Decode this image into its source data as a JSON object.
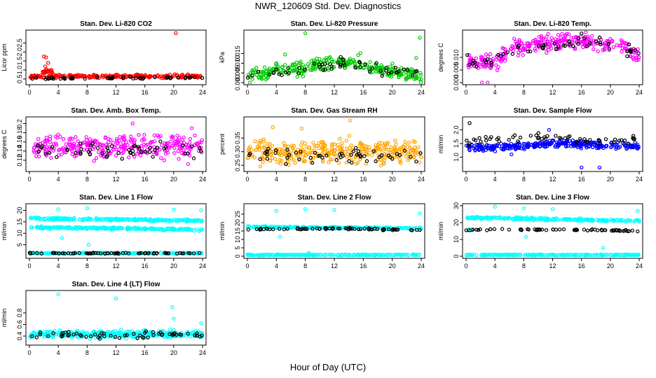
{
  "page": {
    "title": "NWR_120609  Std. Dev. Diagnostics",
    "xlabel": "Hour of Day (UTC)"
  },
  "colors": {
    "red": "#ff0000",
    "green": "#00cc00",
    "magenta": "#ff00ff",
    "orange": "#ffa500",
    "blue": "#0000ff",
    "cyan": "#00ffff",
    "black": "#000000"
  },
  "chart_data": [
    {
      "type": "scatter",
      "title": "Stan. Dev. Li-820 CO2",
      "ylabel": "Licor ppm",
      "xlim": [
        0,
        24
      ],
      "ylim": [
        0.3,
        3.1
      ],
      "xticks": [
        "0",
        "4",
        "8",
        "12",
        "16",
        "20",
        "24"
      ],
      "yticks": [
        {
          "v": 0.5,
          "t": "0.5"
        },
        {
          "v": 1.0,
          "t": "1.0"
        },
        {
          "v": 1.5,
          "t": "1.5"
        },
        {
          "v": 2.0,
          "t": "2.0"
        },
        {
          "v": 2.5,
          "t": "2.5"
        }
      ],
      "series": [
        {
          "color": "red",
          "profile": [
            [
              0,
              0.65
            ],
            [
              24,
              0.65
            ]
          ],
          "noise": 0.06,
          "count": 240
        },
        {
          "color": "red",
          "profile": [
            [
              1.8,
              0.9
            ],
            [
              3.2,
              0.9
            ]
          ],
          "noise": 0.08,
          "count": 25
        },
        {
          "color": "black",
          "profile": [
            [
              0,
              0.55
            ],
            [
              24,
              0.55
            ]
          ],
          "noise": 0.05,
          "count": 50
        }
      ],
      "points": [
        {
          "x": 2.0,
          "y": 1.75,
          "color": "red"
        },
        {
          "x": 2.3,
          "y": 1.7,
          "color": "red"
        },
        {
          "x": 2.6,
          "y": 1.4,
          "color": "red"
        },
        {
          "x": 2.2,
          "y": 1.2,
          "color": "red"
        },
        {
          "x": 20.3,
          "y": 3.05,
          "color": "red"
        }
      ]
    },
    {
      "type": "scatter",
      "title": "Stan. Dev. Li-820 Pressure",
      "ylabel": "kPa",
      "xlim": [
        0,
        24
      ],
      "ylim": [
        0.0,
        0.026
      ],
      "xticks": [
        "0",
        "4",
        "8",
        "12",
        "16",
        "20",
        "24"
      ],
      "yticks": [
        {
          "v": 0.0,
          "t": "0.000"
        },
        {
          "v": 0.005,
          "t": "0.005"
        },
        {
          "v": 0.01,
          "t": "0.010"
        },
        {
          "v": 0.015,
          "t": "0.015"
        }
      ],
      "series": [
        {
          "color": "green",
          "profile": [
            [
              0,
              0.004
            ],
            [
              4,
              0.006
            ],
            [
              10,
              0.009
            ],
            [
              13,
              0.011
            ],
            [
              18,
              0.007
            ],
            [
              24,
              0.003
            ]
          ],
          "noise": 0.0025,
          "count": 300
        },
        {
          "color": "black",
          "profile": [
            [
              0,
              0.004
            ],
            [
              4,
              0.005
            ],
            [
              10,
              0.008
            ],
            [
              13,
              0.01
            ],
            [
              18,
              0.007
            ],
            [
              24,
              0.004
            ]
          ],
          "noise": 0.002,
          "count": 55
        }
      ],
      "points": [
        {
          "x": 8.0,
          "y": 0.0255,
          "color": "green"
        },
        {
          "x": 23.8,
          "y": 0.0232,
          "color": "green"
        },
        {
          "x": 5.2,
          "y": 0.0145,
          "color": "green"
        },
        {
          "x": 15.6,
          "y": 0.0152,
          "color": "green"
        },
        {
          "x": 23.3,
          "y": 0.0127,
          "color": "green"
        }
      ]
    },
    {
      "type": "scatter",
      "title": "Stan. Dev. Li-820 Temp.",
      "ylabel": "degrees C",
      "xlim": [
        0,
        24
      ],
      "ylim": [
        0.0,
        0.02
      ],
      "xticks": [
        "0",
        "4",
        "8",
        "12",
        "16",
        "20",
        "24"
      ],
      "yticks": [
        {
          "v": 0.0,
          "t": "0.000"
        },
        {
          "v": 0.005,
          "t": "0.005"
        },
        {
          "v": 0.01,
          "t": "0.010"
        }
      ],
      "series": [
        {
          "color": "magenta",
          "profile": [
            [
              0,
              0.009
            ],
            [
              2,
              0.008
            ],
            [
              4,
              0.008
            ],
            [
              6,
              0.013
            ],
            [
              10,
              0.016
            ],
            [
              14,
              0.017
            ],
            [
              18,
              0.016
            ],
            [
              22,
              0.014
            ],
            [
              24,
              0.01
            ]
          ],
          "noise": 0.0022,
          "count": 300
        },
        {
          "color": "black",
          "profile": [
            [
              0,
              0.009
            ],
            [
              3,
              0.008
            ],
            [
              6,
              0.012
            ],
            [
              12,
              0.015
            ],
            [
              18,
              0.016
            ],
            [
              24,
              0.011
            ]
          ],
          "noise": 0.0015,
          "count": 55
        }
      ],
      "points": [
        {
          "x": 2.2,
          "y": 0.0,
          "color": "magenta"
        },
        {
          "x": 3.0,
          "y": 0.0,
          "color": "magenta"
        },
        {
          "x": 16.0,
          "y": 0.0195,
          "color": "black"
        }
      ]
    },
    {
      "type": "scatter",
      "title": "Stan. Dev. Amb. Box Temp.",
      "ylabel": "degrees C",
      "xlim": [
        0,
        24
      ],
      "ylim": [
        0.1,
        0.21
      ],
      "xticks": [
        "0",
        "4",
        "8",
        "12",
        "16",
        "20",
        "24"
      ],
      "yticks": [
        {
          "v": 0.12,
          "t": "0.12"
        },
        {
          "v": 0.14,
          "t": "0.14"
        },
        {
          "v": 0.16,
          "t": "0.16"
        },
        {
          "v": 0.18,
          "t": "0.18"
        },
        {
          "v": 0.2,
          "t": "0.2"
        }
      ],
      "series": [
        {
          "color": "magenta",
          "profile": [
            [
              0,
              0.15
            ],
            [
              24,
              0.15
            ]
          ],
          "noise": 0.018,
          "count": 300
        },
        {
          "color": "black",
          "profile": [
            [
              0,
              0.14
            ],
            [
              24,
              0.14
            ]
          ],
          "noise": 0.012,
          "count": 55
        }
      ],
      "points": [
        {
          "x": 14.3,
          "y": 0.2,
          "color": "magenta"
        },
        {
          "x": 22.5,
          "y": 0.19,
          "color": "magenta"
        }
      ]
    },
    {
      "type": "scatter",
      "title": "Stan. Dev. Gas Stream RH",
      "ylabel": "percent",
      "xlim": [
        0,
        24
      ],
      "ylim": [
        0.235,
        0.42
      ],
      "xticks": [
        "0",
        "4",
        "8",
        "12",
        "16",
        "20",
        "24"
      ],
      "yticks": [
        {
          "v": 0.25,
          "t": "0.25"
        },
        {
          "v": 0.3,
          "t": "0.30"
        },
        {
          "v": 0.35,
          "t": "0.35"
        }
      ],
      "series": [
        {
          "color": "orange",
          "profile": [
            [
              0,
              0.3
            ],
            [
              24,
              0.3
            ]
          ],
          "noise": 0.028,
          "count": 340
        },
        {
          "color": "black",
          "profile": [
            [
              0,
              0.29
            ],
            [
              24,
              0.29
            ]
          ],
          "noise": 0.018,
          "count": 55
        }
      ],
      "points": [
        {
          "x": 14.2,
          "y": 0.415,
          "color": "orange"
        },
        {
          "x": 3.5,
          "y": 0.39,
          "color": "orange"
        },
        {
          "x": 7.5,
          "y": 0.385,
          "color": "orange"
        }
      ]
    },
    {
      "type": "scatter",
      "title": "Stan. Dev. Sample Flow",
      "ylabel": "ml/min",
      "xlim": [
        0,
        24
      ],
      "ylim": [
        0.55,
        2.4
      ],
      "xticks": [
        "0",
        "4",
        "8",
        "12",
        "16",
        "20",
        "24"
      ],
      "yticks": [
        {
          "v": 1.0,
          "t": "1.0"
        },
        {
          "v": 1.5,
          "t": "1.5"
        },
        {
          "v": 2.0,
          "t": "2.0"
        }
      ],
      "series": [
        {
          "color": "blue",
          "profile": [
            [
              0,
              1.35
            ],
            [
              8,
              1.4
            ],
            [
              12,
              1.5
            ],
            [
              18,
              1.45
            ],
            [
              24,
              1.4
            ]
          ],
          "noise": 0.09,
          "count": 320
        },
        {
          "color": "black",
          "profile": [
            [
              0,
              1.5
            ],
            [
              4,
              1.7
            ],
            [
              12,
              1.75
            ],
            [
              18,
              1.6
            ],
            [
              24,
              1.65
            ]
          ],
          "noise": 0.09,
          "count": 55
        }
      ],
      "points": [
        {
          "x": 0.5,
          "y": 2.25,
          "color": "black"
        },
        {
          "x": 16.0,
          "y": 0.62,
          "color": "blue"
        },
        {
          "x": 18.5,
          "y": 0.62,
          "color": "blue"
        },
        {
          "x": 11.5,
          "y": 2.0,
          "color": "blue"
        },
        {
          "x": 6.3,
          "y": 1.1,
          "color": "blue"
        }
      ]
    },
    {
      "type": "scatter",
      "title": "Stan. Dev. Line 1 Flow",
      "ylabel": "ml/min",
      "xlim": [
        0,
        24
      ],
      "ylim": [
        0,
        22
      ],
      "xticks": [
        "0",
        "4",
        "8",
        "12",
        "16",
        "20",
        "24"
      ],
      "yticks": [
        {
          "v": 5,
          "t": "5"
        },
        {
          "v": 10,
          "t": "10"
        },
        {
          "v": 15,
          "t": "15"
        },
        {
          "v": 20,
          "t": "20"
        }
      ],
      "series": [
        {
          "color": "cyan",
          "profile": [
            [
              0,
              16.5
            ],
            [
              24,
              15.5
            ]
          ],
          "noise": 0.35,
          "count": 230
        },
        {
          "color": "cyan",
          "profile": [
            [
              0,
              12.5
            ],
            [
              12,
              12.2
            ],
            [
              24,
              11.5
            ]
          ],
          "noise": 0.35,
          "count": 230
        },
        {
          "color": "cyan",
          "profile": [
            [
              0,
              1.3
            ],
            [
              24,
              1.3
            ]
          ],
          "noise": 0.15,
          "count": 200
        },
        {
          "color": "black",
          "profile": [
            [
              0,
              1.3
            ],
            [
              24,
              1.3
            ]
          ],
          "noise": 0.15,
          "count": 70
        }
      ],
      "points": [
        {
          "x": 4.0,
          "y": 20.5,
          "color": "cyan"
        },
        {
          "x": 8.0,
          "y": 21.0,
          "color": "cyan"
        },
        {
          "x": 23.8,
          "y": 20.0,
          "color": "cyan"
        },
        {
          "x": 8.2,
          "y": 5.0,
          "color": "cyan"
        },
        {
          "x": 4.5,
          "y": 8.0,
          "color": "cyan"
        },
        {
          "x": 20.0,
          "y": 20.3,
          "color": "cyan"
        }
      ]
    },
    {
      "type": "scatter",
      "title": "Stan. Dev. Line 2 Flow",
      "ylabel": "ml/min",
      "xlim": [
        0,
        24
      ],
      "ylim": [
        0,
        30
      ],
      "xticks": [
        "0",
        "4",
        "8",
        "12",
        "16",
        "20",
        "24"
      ],
      "yticks": [
        {
          "v": 0,
          "t": "0"
        },
        {
          "v": 5,
          "t": "5"
        },
        {
          "v": 10,
          "t": "10"
        },
        {
          "v": 15,
          "t": "15"
        },
        {
          "v": 20,
          "t": "20"
        },
        {
          "v": 25,
          "t": "25"
        }
      ],
      "series": [
        {
          "color": "cyan",
          "profile": [
            [
              0,
              17.5
            ],
            [
              24,
              16.5
            ]
          ],
          "noise": 0.4,
          "count": 240
        },
        {
          "color": "black",
          "profile": [
            [
              0,
              16
            ],
            [
              12,
              16.5
            ],
            [
              24,
              15.5
            ]
          ],
          "noise": 0.3,
          "count": 70
        },
        {
          "color": "cyan",
          "profile": [
            [
              0,
              0.8
            ],
            [
              24,
              0.8
            ]
          ],
          "noise": 0.2,
          "count": 220
        }
      ],
      "points": [
        {
          "x": 4.0,
          "y": 27.0,
          "color": "cyan"
        },
        {
          "x": 8.0,
          "y": 28.0,
          "color": "cyan"
        },
        {
          "x": 12.0,
          "y": 27.5,
          "color": "cyan"
        },
        {
          "x": 23.8,
          "y": 25.5,
          "color": "cyan"
        },
        {
          "x": 4.5,
          "y": 11.5,
          "color": "cyan"
        },
        {
          "x": 8.5,
          "y": 2.0,
          "color": "cyan"
        }
      ]
    },
    {
      "type": "scatter",
      "title": "Stan. Dev. Line 3 Flow",
      "ylabel": "ml/min",
      "xlim": [
        0,
        24
      ],
      "ylim": [
        0,
        30
      ],
      "xticks": [
        "0",
        "4",
        "8",
        "12",
        "16",
        "20",
        "24"
      ],
      "yticks": [
        {
          "v": 0,
          "t": "0"
        },
        {
          "v": 10,
          "t": "10"
        },
        {
          "v": 20,
          "t": "20"
        },
        {
          "v": 30,
          "t": "30"
        }
      ],
      "series": [
        {
          "color": "cyan",
          "profile": [
            [
              0,
              23
            ],
            [
              24,
              21
            ]
          ],
          "noise": 0.5,
          "count": 240
        },
        {
          "color": "black",
          "profile": [
            [
              0,
              15.5
            ],
            [
              12,
              16
            ],
            [
              24,
              15
            ]
          ],
          "noise": 0.3,
          "count": 70
        },
        {
          "color": "cyan",
          "profile": [
            [
              0,
              0.8
            ],
            [
              24,
              0.8
            ]
          ],
          "noise": 0.2,
          "count": 220
        }
      ],
      "points": [
        {
          "x": 4.0,
          "y": 29.5,
          "color": "cyan"
        },
        {
          "x": 8.0,
          "y": 28.5,
          "color": "cyan"
        },
        {
          "x": 12.0,
          "y": 28.0,
          "color": "cyan"
        },
        {
          "x": 23.8,
          "y": 27.0,
          "color": "cyan"
        },
        {
          "x": 8.3,
          "y": 11.5,
          "color": "cyan"
        },
        {
          "x": 19.0,
          "y": 5.0,
          "color": "cyan"
        },
        {
          "x": 0.5,
          "y": 16.0,
          "color": "cyan"
        }
      ]
    },
    {
      "type": "scatter",
      "title": "Stan. Dev. Line 4 (LT) Flow",
      "ylabel": "ml/min",
      "xlim": [
        0,
        24
      ],
      "ylim": [
        0.28,
        1.15
      ],
      "xticks": [
        "0",
        "4",
        "8",
        "12",
        "16",
        "20",
        "24"
      ],
      "yticks": [
        {
          "v": 0.4,
          "t": "0.4"
        },
        {
          "v": 0.6,
          "t": "0.6"
        },
        {
          "v": 0.8,
          "t": "0.8"
        }
      ],
      "series": [
        {
          "color": "cyan",
          "profile": [
            [
              0,
              0.43
            ],
            [
              24,
              0.43
            ]
          ],
          "noise": 0.045,
          "count": 340
        },
        {
          "color": "black",
          "profile": [
            [
              0,
              0.42
            ],
            [
              24,
              0.42
            ]
          ],
          "noise": 0.035,
          "count": 60
        }
      ],
      "points": [
        {
          "x": 4.0,
          "y": 1.12,
          "color": "cyan"
        },
        {
          "x": 12.0,
          "y": 1.05,
          "color": "cyan"
        },
        {
          "x": 19.8,
          "y": 0.9,
          "color": "cyan"
        },
        {
          "x": 23.8,
          "y": 0.62,
          "color": "cyan"
        },
        {
          "x": 20.0,
          "y": 0.7,
          "color": "cyan"
        }
      ]
    }
  ]
}
